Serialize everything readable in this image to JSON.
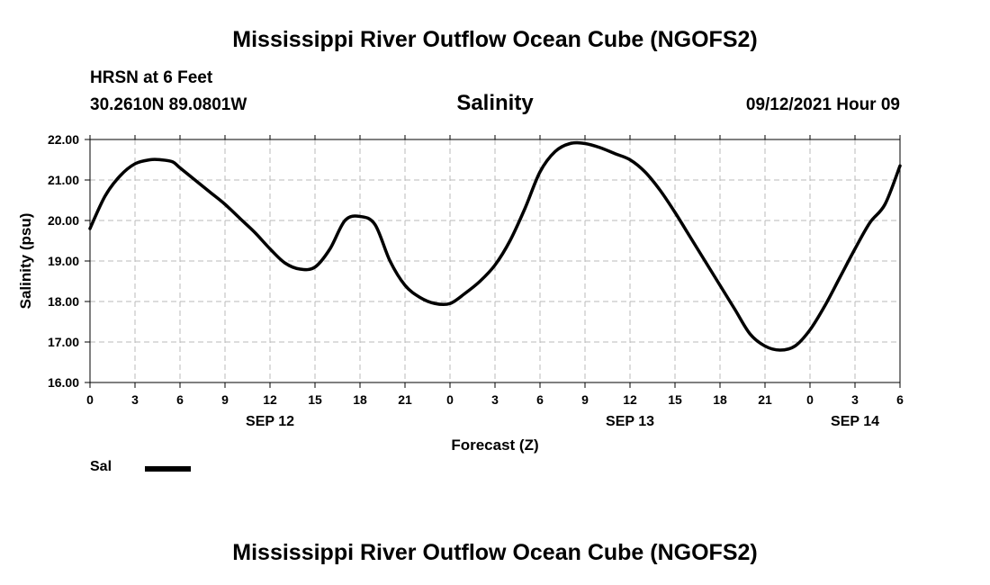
{
  "header": {
    "title": "Mississippi River Outflow Ocean Cube (NGOFS2)",
    "station": "HRSN at 6 Feet",
    "coordinates": "30.2610N  89.0801W",
    "parameter": "Salinity",
    "datetime": "09/12/2021 Hour 09"
  },
  "footer": {
    "title": "Mississippi River Outflow Ocean Cube (NGOFS2)"
  },
  "legend": {
    "label": "Sal",
    "color": "#000000"
  },
  "chart_data": {
    "type": "line",
    "title": "Salinity",
    "xlabel": "Forecast (Z)",
    "ylabel": "Salinity (psu)",
    "xlim": [
      0,
      54
    ],
    "ylim": [
      16.0,
      22.0
    ],
    "grid": true,
    "x_ticks": [
      0,
      3,
      6,
      9,
      12,
      15,
      18,
      21,
      24,
      27,
      30,
      33,
      36,
      39,
      42,
      45,
      48,
      51,
      54
    ],
    "x_tick_labels": [
      "0",
      "3",
      "6",
      "9",
      "12",
      "15",
      "18",
      "21",
      "0",
      "3",
      "6",
      "9",
      "12",
      "15",
      "18",
      "21",
      "0",
      "3",
      "6"
    ],
    "y_ticks": [
      16.0,
      17.0,
      18.0,
      19.0,
      20.0,
      21.0,
      22.0
    ],
    "y_tick_labels": [
      "16.00",
      "17.00",
      "18.00",
      "19.00",
      "20.00",
      "21.00",
      "22.00"
    ],
    "date_labels": [
      {
        "x": 12,
        "label": "SEP 12"
      },
      {
        "x": 36,
        "label": "SEP 13"
      },
      {
        "x": 51,
        "label": "SEP 14"
      }
    ],
    "series": [
      {
        "name": "Sal",
        "color": "#000000",
        "x": [
          0,
          1,
          2,
          3,
          4,
          4.7,
          5.5,
          6,
          7,
          8,
          9,
          10,
          11,
          12,
          13,
          14,
          15,
          16,
          17,
          18,
          19,
          20,
          21,
          22,
          23,
          24,
          25,
          26,
          27,
          28,
          29,
          30,
          31,
          32,
          33,
          34,
          35,
          36,
          37,
          38,
          39,
          40,
          41,
          42,
          43,
          44,
          45,
          46,
          47,
          48,
          49,
          50,
          51,
          52,
          53,
          54
        ],
        "values": [
          19.8,
          20.6,
          21.1,
          21.4,
          21.5,
          21.5,
          21.45,
          21.3,
          21.0,
          20.7,
          20.4,
          20.05,
          19.7,
          19.3,
          18.95,
          18.8,
          18.85,
          19.3,
          20.0,
          20.1,
          19.9,
          19.0,
          18.4,
          18.1,
          17.95,
          17.95,
          18.2,
          18.5,
          18.9,
          19.5,
          20.3,
          21.2,
          21.7,
          21.9,
          21.9,
          21.8,
          21.65,
          21.5,
          21.2,
          20.75,
          20.2,
          19.6,
          19.0,
          18.4,
          17.8,
          17.2,
          16.9,
          16.8,
          16.9,
          17.3,
          17.9,
          18.6,
          19.3,
          19.95,
          20.4,
          21.35
        ]
      }
    ]
  }
}
